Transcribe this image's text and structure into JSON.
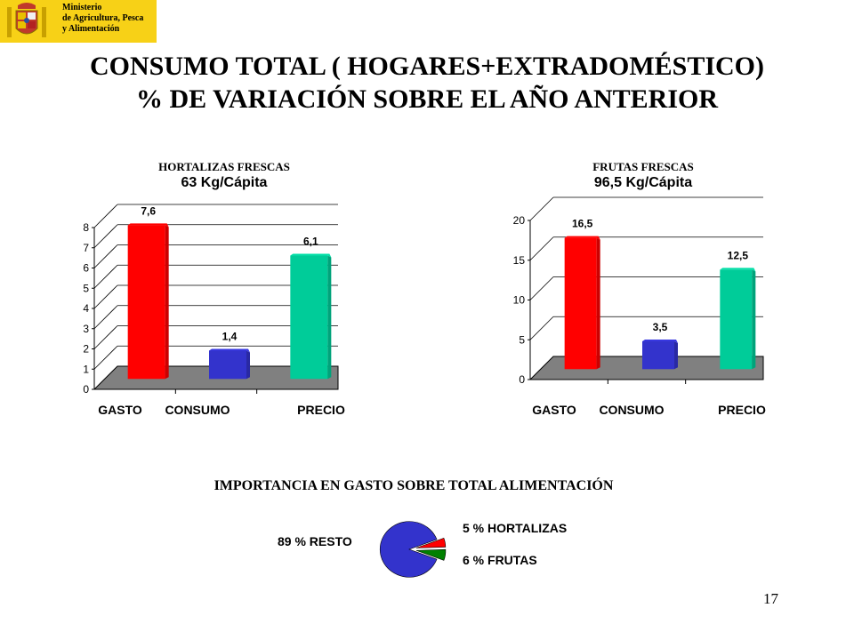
{
  "header": {
    "logo_lines": [
      "Ministerio",
      "de Agricultura, Pesca",
      "y Alimentación"
    ]
  },
  "title_line1": "CONSUMO TOTAL ( HOGARES+EXTRADOMÉSTICO)",
  "title_line2": "% DE VARIACIÓN SOBRE EL AÑO ANTERIOR",
  "chart_data": [
    {
      "type": "bar",
      "title": "HORTALIZAS FRESCAS",
      "subtitle": "63 Kg/Cápita",
      "categories": [
        "GASTO",
        "CONSUMO",
        "PRECIO"
      ],
      "values": [
        7.6,
        1.4,
        6.1
      ],
      "value_labels": [
        "7,6",
        "1,4",
        "6,1"
      ],
      "colors": [
        "#ff0000",
        "#3333cc",
        "#00cc99"
      ],
      "ylim": [
        0,
        8
      ],
      "yticks": [
        0,
        1,
        2,
        3,
        4,
        5,
        6,
        7,
        8
      ],
      "grid": true,
      "style": "3d"
    },
    {
      "type": "bar",
      "title": "FRUTAS FRESCAS",
      "subtitle": "96,5 Kg/Cápita",
      "categories": [
        "GASTO",
        "CONSUMO",
        "PRECIO"
      ],
      "values": [
        16.5,
        3.5,
        12.5
      ],
      "value_labels": [
        "16,5",
        "3,5",
        "12,5"
      ],
      "colors": [
        "#ff0000",
        "#3333cc",
        "#00cc99"
      ],
      "ylim": [
        0,
        20
      ],
      "yticks": [
        0,
        5,
        10,
        15,
        20
      ],
      "grid": true,
      "style": "3d"
    },
    {
      "type": "pie",
      "title": "IMPORTANCIA EN GASTO SOBRE TOTAL ALIMENTACIÓN",
      "slices": [
        {
          "label": "89 % RESTO",
          "value": 89,
          "color": "#3333cc"
        },
        {
          "label": "5 % HORTALIZAS",
          "value": 5,
          "color": "#ff0000"
        },
        {
          "label": "6 % FRUTAS",
          "value": 6,
          "color": "#008000"
        }
      ]
    }
  ],
  "page_number": "17"
}
